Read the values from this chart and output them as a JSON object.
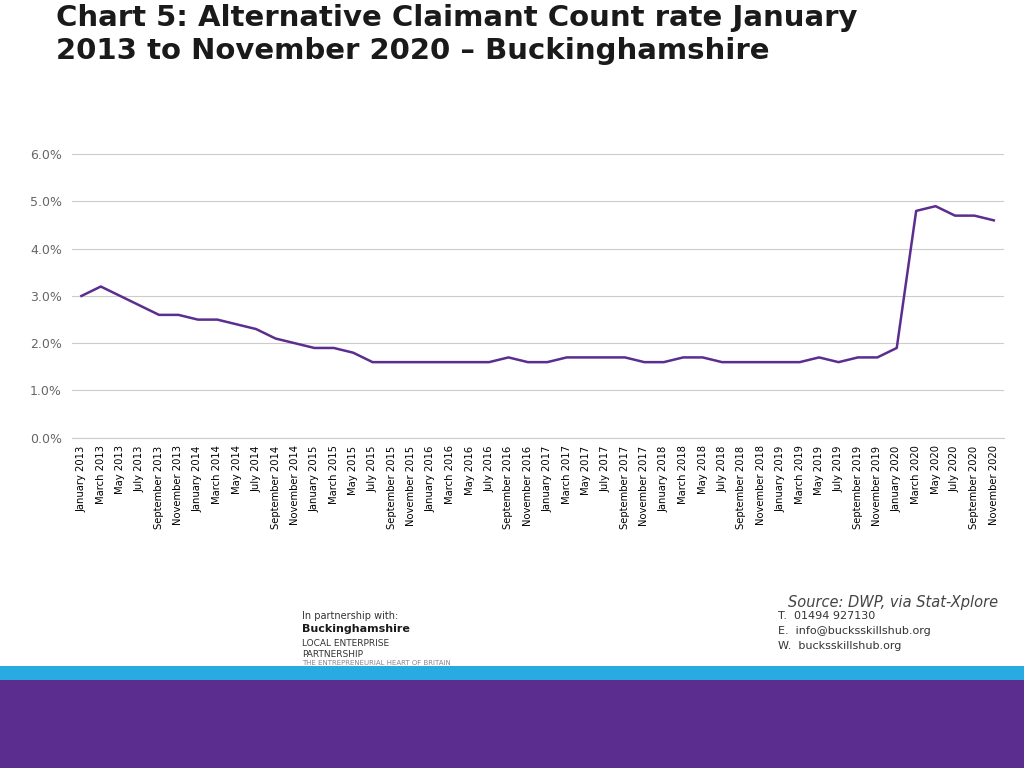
{
  "title": "Chart 5: Alternative Claimant Count rate January\n2013 to November 2020 – Buckinghamshire",
  "source": "Source: DWP, via Stat-Xplore",
  "line_color": "#5b2d8e",
  "line_width": 1.8,
  "ylim": [
    0.0,
    0.065
  ],
  "yticks": [
    0.0,
    0.01,
    0.02,
    0.03,
    0.04,
    0.05,
    0.06
  ],
  "ytick_labels": [
    "0.0%",
    "1.0%",
    "2.0%",
    "3.0%",
    "4.0%",
    "5.0%",
    "6.0%"
  ],
  "grid_color": "#cccccc",
  "background_color": "#ffffff",
  "footer_bar_color_blue": "#29abe2",
  "footer_bar_color_purple": "#5b2d8e",
  "x_labels": [
    "January 2013",
    "March 2013",
    "May 2013",
    "July 2013",
    "September 2013",
    "November 2013",
    "January 2014",
    "March 2014",
    "May 2014",
    "July 2014",
    "September 2014",
    "November 2014",
    "January 2015",
    "March 2015",
    "May 2015",
    "July 2015",
    "September 2015",
    "November 2015",
    "January 2016",
    "March 2016",
    "May 2016",
    "July 2016",
    "September 2016",
    "November 2016",
    "January 2017",
    "March 2017",
    "May 2017",
    "July 2017",
    "September 2017",
    "November 2017",
    "January 2018",
    "March 2018",
    "May 2018",
    "July 2018",
    "September 2018",
    "November 2018",
    "January 2019",
    "March 2019",
    "May 2019",
    "July 2019",
    "September 2019",
    "November 2019",
    "January 2020",
    "March 2020",
    "May 2020",
    "July 2020",
    "September 2020",
    "November 2020"
  ],
  "values": [
    0.03,
    0.032,
    0.03,
    0.028,
    0.026,
    0.026,
    0.025,
    0.025,
    0.024,
    0.023,
    0.021,
    0.02,
    0.019,
    0.019,
    0.018,
    0.016,
    0.016,
    0.016,
    0.016,
    0.016,
    0.016,
    0.016,
    0.017,
    0.016,
    0.016,
    0.017,
    0.017,
    0.017,
    0.017,
    0.016,
    0.016,
    0.017,
    0.017,
    0.016,
    0.016,
    0.016,
    0.016,
    0.016,
    0.017,
    0.016,
    0.017,
    0.017,
    0.019,
    0.048,
    0.049,
    0.047,
    0.047,
    0.046
  ]
}
